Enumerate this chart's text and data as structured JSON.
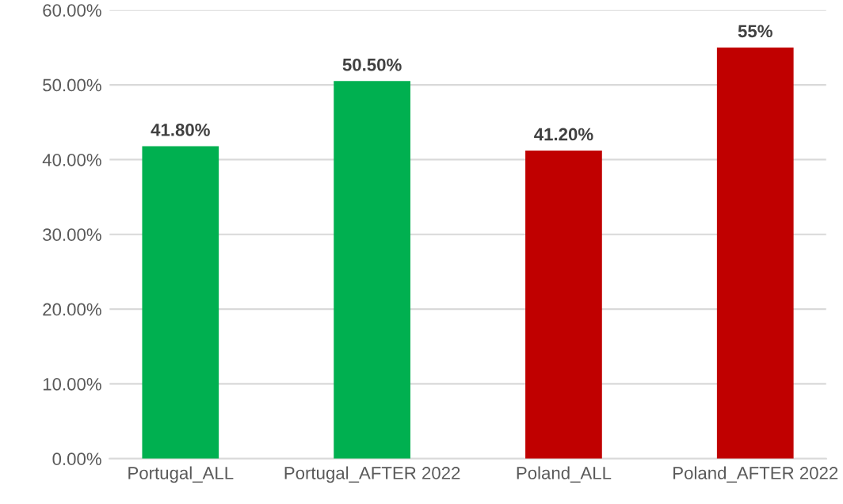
{
  "chart_data": {
    "type": "bar",
    "categories": [
      "Portugal_ALL",
      "Portugal_AFTER 2022",
      "Poland_ALL",
      "Poland_AFTER 2022"
    ],
    "values": [
      41.8,
      50.5,
      41.2,
      55
    ],
    "colors": [
      "#00b050",
      "#00b050",
      "#c00000",
      "#c00000"
    ],
    "value_labels": [
      "41.80%",
      "50.50%",
      "41.20%",
      "55%"
    ],
    "ylim": [
      0,
      60
    ],
    "yticks": [
      {
        "value": 0,
        "label": "0.00%"
      },
      {
        "value": 10,
        "label": "10.00%"
      },
      {
        "value": 20,
        "label": "20.00%"
      },
      {
        "value": 30,
        "label": "30.00%"
      },
      {
        "value": 40,
        "label": "40.00%"
      },
      {
        "value": 50,
        "label": "50.00%"
      },
      {
        "value": 60,
        "label": "60.00%"
      }
    ],
    "grid": "y"
  }
}
